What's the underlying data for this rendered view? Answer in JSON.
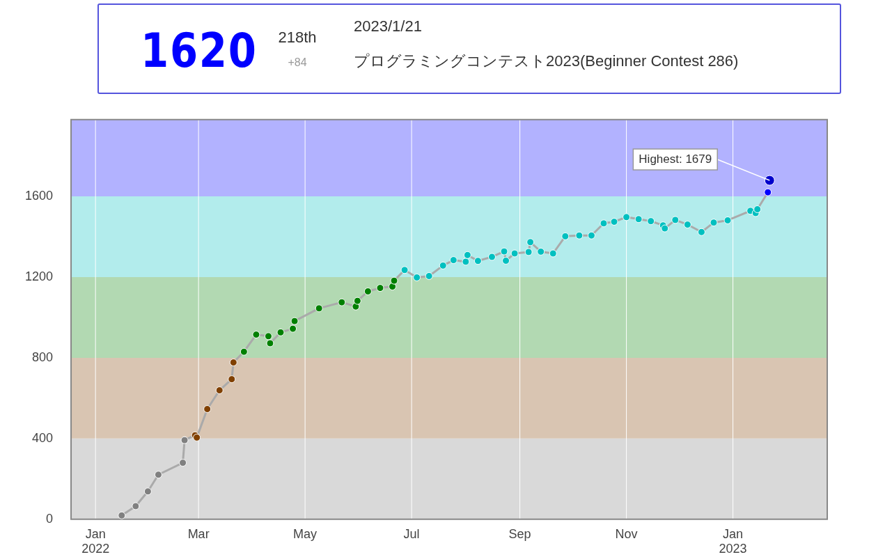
{
  "chart_data": {
    "type": "line",
    "title": "1620",
    "annotations": [
      "218th",
      "+84",
      "2023/1/21",
      "プログラミングコンテスト2023(Beginner Contest 286)",
      {
        "text": "Highest: 1679",
        "x": "2023-01-22",
        "y": 1679
      }
    ],
    "x": [
      "2022-01-16",
      "2022-01-24",
      "2022-01-31",
      "2022-02-06",
      "2022-02-20",
      "2022-02-21",
      "2022-02-27",
      "2022-02-28",
      "2022-03-06",
      "2022-03-13",
      "2022-03-20",
      "2022-03-21",
      "2022-03-27",
      "2022-04-03",
      "2022-04-10",
      "2022-04-11",
      "2022-04-17",
      "2022-04-24",
      "2022-04-25",
      "2022-05-09",
      "2022-05-22",
      "2022-05-30",
      "2022-05-31",
      "2022-06-06",
      "2022-06-13",
      "2022-06-20",
      "2022-06-21",
      "2022-06-27",
      "2022-07-04",
      "2022-07-11",
      "2022-07-19",
      "2022-07-25",
      "2022-08-01",
      "2022-08-02",
      "2022-08-08",
      "2022-08-16",
      "2022-08-23",
      "2022-08-24",
      "2022-08-29",
      "2022-09-06",
      "2022-09-07",
      "2022-09-13",
      "2022-09-20",
      "2022-09-27",
      "2022-10-05",
      "2022-10-12",
      "2022-10-19",
      "2022-10-25",
      "2022-11-01",
      "2022-11-08",
      "2022-11-15",
      "2022-11-22",
      "2022-11-23",
      "2022-11-29",
      "2022-12-06",
      "2022-12-14",
      "2022-12-21",
      "2022-12-29",
      "2023-01-11",
      "2023-01-14",
      "2023-01-15",
      "2023-01-21"
    ],
    "series": [
      {
        "color": "#aaaaaa",
        "values": [
          19,
          65,
          138,
          221,
          280,
          392,
          416,
          405,
          546,
          639,
          694,
          777,
          830,
          915,
          907,
          872,
          926,
          944,
          982,
          1045,
          1075,
          1054,
          1082,
          1129,
          1146,
          1153,
          1182,
          1235,
          1198,
          1205,
          1257,
          1284,
          1276,
          1309,
          1280,
          1300,
          1327,
          1281,
          1317,
          1324,
          1373,
          1326,
          1317,
          1402,
          1406,
          1406,
          1466,
          1474,
          1497,
          1487,
          1477,
          1456,
          1441,
          1483,
          1460,
          1423,
          1470,
          1481,
          1528,
          1517,
          1536,
          1620
        ],
        "colors": [
          "#808080",
          "#808080",
          "#808080",
          "#808080",
          "#808080",
          "#808080",
          "#804000",
          "#804000",
          "#804000",
          "#804000",
          "#804000",
          "#804000",
          "#008000",
          "#008000",
          "#008000",
          "#008000",
          "#008000",
          "#008000",
          "#008000",
          "#008000",
          "#008000",
          "#008000",
          "#008000",
          "#008000",
          "#008000",
          "#008000",
          "#008000",
          "#00c0c0",
          "#00c0c0",
          "#00c0c0",
          "#00c0c0",
          "#00c0c0",
          "#00c0c0",
          "#00c0c0",
          "#00c0c0",
          "#00c0c0",
          "#00c0c0",
          "#00c0c0",
          "#00c0c0",
          "#00c0c0",
          "#00c0c0",
          "#00c0c0",
          "#00c0c0",
          "#00c0c0",
          "#00c0c0",
          "#00c0c0",
          "#00c0c0",
          "#00c0c0",
          "#00c0c0",
          "#00c0c0",
          "#00c0c0",
          "#00c0c0",
          "#00c0c0",
          "#00c0c0",
          "#00c0c0",
          "#00c0c0",
          "#00c0c0",
          "#00c0c0",
          "#00c0c0",
          "#00c0c0",
          "#00c0c0",
          "#0000ff"
        ]
      },
      {
        "type": "scatter",
        "color": "#0000cc",
        "x": [
          "2023-01-22"
        ],
        "values": [
          1679
        ]
      }
    ],
    "bands": [
      {
        "axis": "y",
        "from": 0,
        "to": 400,
        "color": "#d9d9d9"
      },
      {
        "axis": "y",
        "from": 400,
        "to": 800,
        "color": "#d9c5b2"
      },
      {
        "axis": "y",
        "from": 800,
        "to": 1200,
        "color": "#b2d9b2"
      },
      {
        "axis": "y",
        "from": 1200,
        "to": 1600,
        "color": "#b2ecec"
      },
      {
        "axis": "y",
        "from": 1600,
        "to": 1980,
        "color": "#b2b2ff"
      }
    ],
    "xlim": [
      "2021-12-18",
      "2023-02-24"
    ],
    "xticks": [
      {
        "value": "2022-01-01",
        "label": "Jan 2022"
      },
      {
        "value": "2022-03-01",
        "label": "Mar"
      },
      {
        "value": "2022-05-01",
        "label": "May"
      },
      {
        "value": "2022-07-01",
        "label": "Jul"
      },
      {
        "value": "2022-09-01",
        "label": "Sep"
      },
      {
        "value": "2022-11-01",
        "label": "Nov"
      },
      {
        "value": "2023-01-01",
        "label": "Jan 2023"
      }
    ],
    "ylim": [
      0,
      1980
    ],
    "yticks": [
      0,
      400,
      800,
      1200,
      1600
    ],
    "grid": "x",
    "legend": false,
    "marker": "circle",
    "line_style": "solid"
  }
}
